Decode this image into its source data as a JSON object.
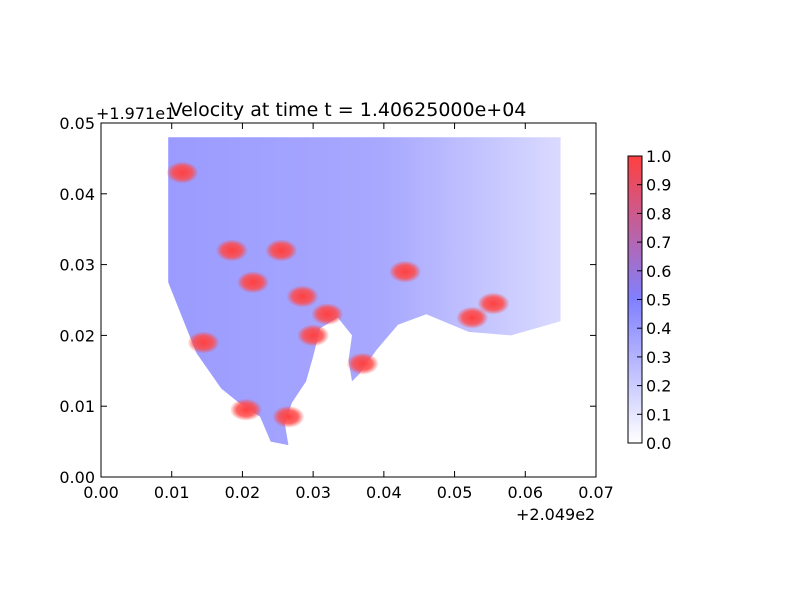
{
  "chart_data": {
    "type": "heatmap",
    "title": "Velocity at time t = 1.40625000e+04",
    "xlabel": "",
    "ylabel": "",
    "xlim": [
      0.0,
      0.07
    ],
    "ylim": [
      0.0,
      0.05
    ],
    "x_ticks": [
      "0.00",
      "0.01",
      "0.02",
      "0.03",
      "0.04",
      "0.05",
      "0.06",
      "0.07"
    ],
    "y_ticks": [
      "0.00",
      "0.01",
      "0.02",
      "0.03",
      "0.04",
      "0.05"
    ],
    "x_offset_label": "+2.049e2",
    "y_offset_label": "+1.971e1",
    "colorbar": {
      "range": [
        0.0,
        1.0
      ],
      "ticks": [
        "0.0",
        "0.1",
        "0.2",
        "0.3",
        "0.4",
        "0.5",
        "0.6",
        "0.7",
        "0.8",
        "0.9",
        "1.0"
      ],
      "colors": [
        "#ffffff",
        "#8080ff",
        "#ff4040"
      ]
    },
    "grid": false,
    "field_outline": [
      [
        0.0095,
        0.048
      ],
      [
        0.065,
        0.048
      ],
      [
        0.065,
        0.022
      ],
      [
        0.058,
        0.02
      ],
      [
        0.052,
        0.0205
      ],
      [
        0.046,
        0.023
      ],
      [
        0.042,
        0.0215
      ],
      [
        0.039,
        0.018
      ],
      [
        0.0365,
        0.0145
      ],
      [
        0.0355,
        0.0135
      ],
      [
        0.035,
        0.0165
      ],
      [
        0.0355,
        0.02
      ],
      [
        0.0335,
        0.0225
      ],
      [
        0.031,
        0.021
      ],
      [
        0.03,
        0.017
      ],
      [
        0.029,
        0.0135
      ],
      [
        0.027,
        0.0105
      ],
      [
        0.026,
        0.0075
      ],
      [
        0.0265,
        0.0045
      ],
      [
        0.024,
        0.005
      ],
      [
        0.0225,
        0.0085
      ],
      [
        0.0195,
        0.0105
      ],
      [
        0.017,
        0.0125
      ],
      [
        0.0135,
        0.0175
      ],
      [
        0.0115,
        0.0225
      ],
      [
        0.0095,
        0.0275
      ],
      [
        0.0095,
        0.033
      ],
      [
        0.0095,
        0.04
      ],
      [
        0.0095,
        0.048
      ]
    ],
    "high_velocity_regions": [
      [
        0.0205,
        0.0095
      ],
      [
        0.0185,
        0.032
      ],
      [
        0.0255,
        0.032
      ],
      [
        0.0215,
        0.0275
      ],
      [
        0.03,
        0.02
      ],
      [
        0.032,
        0.023
      ],
      [
        0.037,
        0.016
      ],
      [
        0.0145,
        0.019
      ],
      [
        0.0555,
        0.0245
      ],
      [
        0.0525,
        0.0225
      ],
      [
        0.0115,
        0.043
      ],
      [
        0.043,
        0.029
      ],
      [
        0.0265,
        0.0085
      ],
      [
        0.0285,
        0.0255
      ]
    ]
  }
}
